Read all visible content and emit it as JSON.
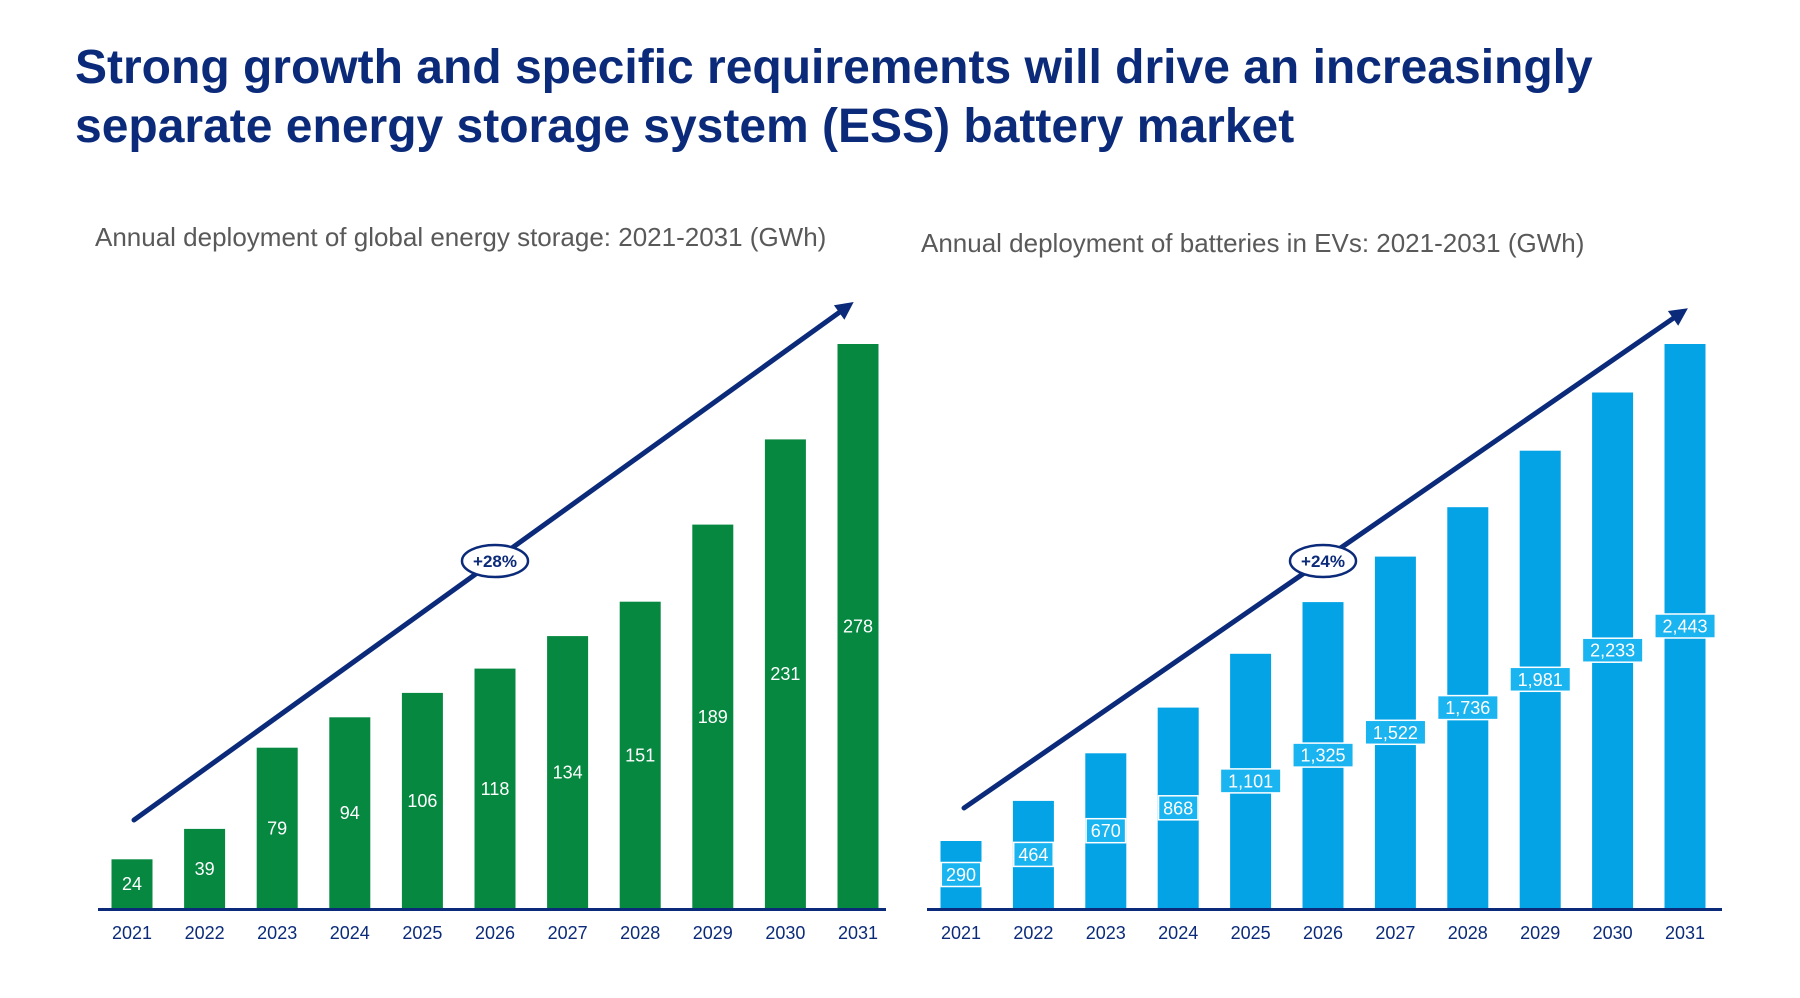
{
  "title": {
    "line1": "Strong growth and specific requirements will drive an increasingly",
    "line2": "separate energy storage system (ESS) battery market"
  },
  "colors": {
    "title": "#0b2b7a",
    "axis": "#0b2b7a",
    "ess_bar": "#068840",
    "ev_bar": "#03a3e6",
    "ev_label_box": "#1ab4f0"
  },
  "chart_data": [
    {
      "type": "bar",
      "title": "Annual deployment of global energy storage: 2021-2031 (GWh)",
      "xlabel": "",
      "ylabel": "GWh",
      "categories": [
        "2021",
        "2022",
        "2023",
        "2024",
        "2025",
        "2026",
        "2027",
        "2028",
        "2029",
        "2030",
        "2031"
      ],
      "values": [
        24,
        39,
        79,
        94,
        106,
        118,
        134,
        151,
        189,
        231,
        278
      ],
      "value_labels": [
        "24",
        "39",
        "79",
        "94",
        "106",
        "118",
        "134",
        "151",
        "189",
        "231",
        "278"
      ],
      "ylim": [
        0,
        278
      ],
      "grid": false,
      "trend_annotation": "+28%"
    },
    {
      "type": "bar",
      "title": "Annual deployment of batteries in EVs: 2021-2031 (GWh)",
      "xlabel": "",
      "ylabel": "GWh",
      "categories": [
        "2021",
        "2022",
        "2023",
        "2024",
        "2025",
        "2026",
        "2027",
        "2028",
        "2029",
        "2030",
        "2031"
      ],
      "values": [
        290,
        464,
        670,
        868,
        1101,
        1325,
        1522,
        1736,
        1981,
        2233,
        2443
      ],
      "value_labels": [
        "290",
        "464",
        "670",
        "868",
        "1,101",
        "1,325",
        "1,522",
        "1,736",
        "1,981",
        "2,233",
        "2,443"
      ],
      "ylim": [
        0,
        2443
      ],
      "grid": false,
      "trend_annotation": "+24%"
    }
  ]
}
